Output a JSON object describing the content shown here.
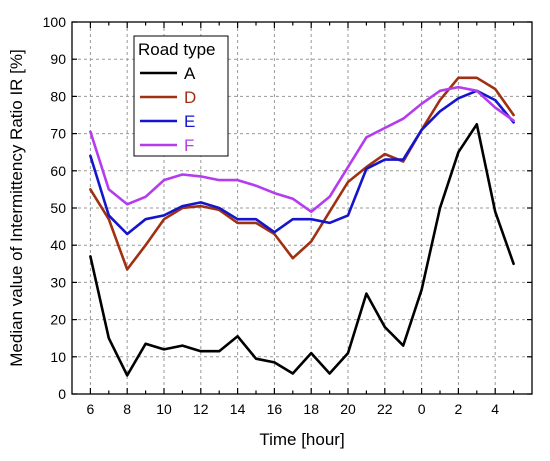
{
  "chart_data": {
    "type": "line",
    "xlabel": "Time  [hour]",
    "ylabel": "Median value of Intermittency Ratio IR [%]",
    "ylim": [
      0,
      100
    ],
    "y_ticks": [
      0,
      10,
      20,
      30,
      40,
      50,
      60,
      70,
      80,
      90,
      100
    ],
    "x": [
      6,
      7,
      8,
      9,
      10,
      11,
      12,
      13,
      14,
      15,
      16,
      17,
      18,
      19,
      20,
      21,
      22,
      23,
      0,
      1,
      2,
      3,
      4,
      5
    ],
    "x_tick_labels": [
      "6",
      "8",
      "10",
      "12",
      "14",
      "16",
      "18",
      "20",
      "22",
      "0",
      "2",
      "4"
    ],
    "grid": true,
    "legend": {
      "title": "Road type",
      "position": "top-left"
    },
    "series": [
      {
        "name": "A",
        "color": "#000000",
        "values": [
          37,
          15,
          5,
          13.5,
          12,
          13,
          11.5,
          11.5,
          15.5,
          9.5,
          8.5,
          5.5,
          11,
          5.5,
          11,
          27,
          18,
          13,
          28,
          50,
          65,
          72.5,
          49,
          35
        ]
      },
      {
        "name": "D",
        "color": "#a03010",
        "values": [
          55,
          47,
          33.5,
          40,
          47,
          50,
          50.5,
          49.5,
          46,
          46,
          43,
          36.5,
          41,
          49,
          57,
          61,
          64.5,
          62.5,
          71,
          79,
          85,
          85,
          82,
          75
        ]
      },
      {
        "name": "E",
        "color": "#1515cc",
        "values": [
          64,
          48,
          43,
          47,
          48,
          50.5,
          51.5,
          50,
          47,
          47,
          43.5,
          47,
          47,
          46,
          48,
          60.5,
          63,
          63,
          71,
          76,
          79.5,
          81.5,
          79,
          73
        ]
      },
      {
        "name": "F",
        "color": "#b43cf0",
        "values": [
          70.5,
          55,
          51,
          53,
          57.5,
          59,
          58.5,
          57.5,
          57.5,
          56,
          54,
          52.5,
          49,
          53,
          61,
          69,
          71.5,
          74,
          78,
          81.5,
          82.5,
          81.5,
          77,
          73.5
        ]
      }
    ]
  }
}
